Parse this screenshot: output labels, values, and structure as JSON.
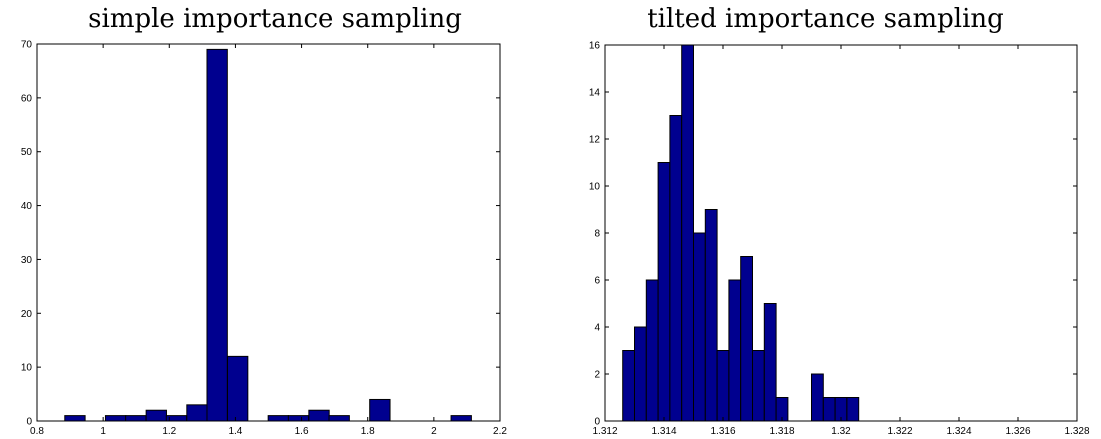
{
  "colors": {
    "bar_fill": "#00008f",
    "bar_edge": "#000000",
    "axis": "#000000",
    "background": "#ffffff"
  },
  "chart_data": [
    {
      "type": "bar",
      "title": "simple importance sampling",
      "xlabel": "",
      "ylabel": "",
      "xlim": [
        0.8,
        2.2
      ],
      "ylim": [
        0,
        70
      ],
      "grid": false,
      "xticks": [
        0.8,
        1,
        1.2,
        1.4,
        1.6,
        1.8,
        2,
        2.2
      ],
      "xtick_labels": [
        "0.8",
        "1",
        "1.2",
        "1.4",
        "1.6",
        "1.8",
        "2",
        "2.2"
      ],
      "yticks": [
        0,
        10,
        20,
        30,
        40,
        50,
        60,
        70
      ],
      "ytick_labels": [
        "0",
        "10",
        "20",
        "30",
        "40",
        "50",
        "60",
        "70"
      ],
      "bin_width": 0.0615,
      "bins": [
        {
          "x": 0.884,
          "value": 1
        },
        {
          "x": 1.007,
          "value": 1
        },
        {
          "x": 1.068,
          "value": 1
        },
        {
          "x": 1.13,
          "value": 2
        },
        {
          "x": 1.191,
          "value": 1
        },
        {
          "x": 1.253,
          "value": 3
        },
        {
          "x": 1.314,
          "value": 69
        },
        {
          "x": 1.376,
          "value": 12
        },
        {
          "x": 1.499,
          "value": 1
        },
        {
          "x": 1.56,
          "value": 1
        },
        {
          "x": 1.622,
          "value": 2
        },
        {
          "x": 1.683,
          "value": 1
        },
        {
          "x": 1.806,
          "value": 4
        },
        {
          "x": 2.052,
          "value": 1
        }
      ]
    },
    {
      "type": "bar",
      "title": "tilted importance sampling",
      "xlabel": "",
      "ylabel": "",
      "xlim": [
        1.312,
        1.328
      ],
      "ylim": [
        0,
        16
      ],
      "grid": false,
      "xticks": [
        1.312,
        1.314,
        1.316,
        1.318,
        1.32,
        1.322,
        1.324,
        1.326,
        1.328
      ],
      "xtick_labels": [
        "1.312",
        "1.314",
        "1.316",
        "1.318",
        "1.32",
        "1.322",
        "1.324",
        "1.326",
        "1.328"
      ],
      "yticks": [
        0,
        2,
        4,
        6,
        8,
        10,
        12,
        14,
        16
      ],
      "ytick_labels": [
        "0",
        "2",
        "4",
        "6",
        "8",
        "10",
        "12",
        "14",
        "16"
      ],
      "bin_width": 0.0004,
      "bins": [
        {
          "x": 1.3126,
          "value": 3
        },
        {
          "x": 1.313,
          "value": 4
        },
        {
          "x": 1.3134,
          "value": 6
        },
        {
          "x": 1.3138,
          "value": 11
        },
        {
          "x": 1.3142,
          "value": 13
        },
        {
          "x": 1.3146,
          "value": 16
        },
        {
          "x": 1.315,
          "value": 8
        },
        {
          "x": 1.3154,
          "value": 9
        },
        {
          "x": 1.3158,
          "value": 3
        },
        {
          "x": 1.3162,
          "value": 6
        },
        {
          "x": 1.3166,
          "value": 7
        },
        {
          "x": 1.317,
          "value": 3
        },
        {
          "x": 1.3174,
          "value": 5
        },
        {
          "x": 1.3178,
          "value": 1
        },
        {
          "x": 1.319,
          "value": 2
        },
        {
          "x": 1.3194,
          "value": 1
        },
        {
          "x": 1.3198,
          "value": 1
        },
        {
          "x": 1.3202,
          "value": 1
        }
      ]
    }
  ]
}
